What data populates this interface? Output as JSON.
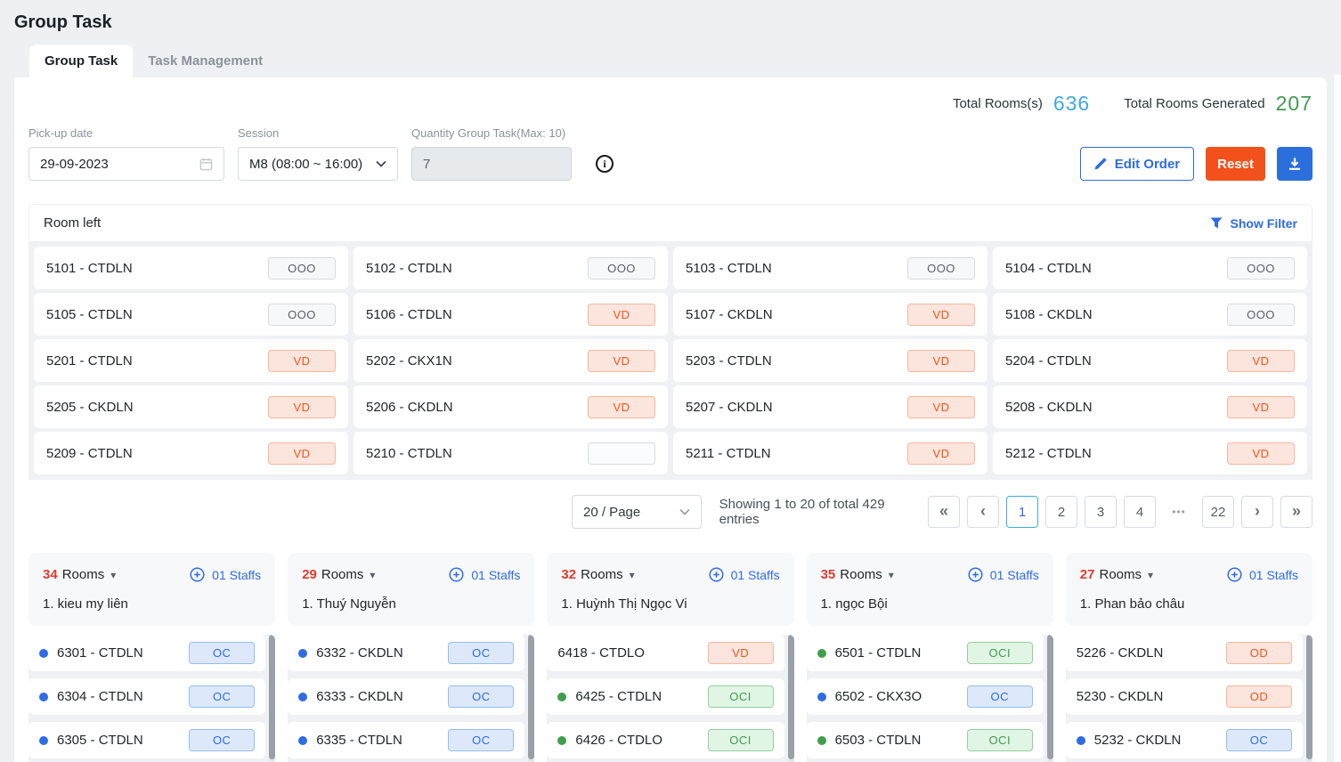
{
  "page": {
    "title": "Group Task"
  },
  "tabs": [
    {
      "label": "Group Task",
      "active": true
    },
    {
      "label": "Task Management",
      "active": false
    }
  ],
  "totals": {
    "rooms_label": "Total Rooms(s)",
    "rooms_value": "636",
    "generated_label": "Total Rooms Generated",
    "generated_value": "207"
  },
  "filters": {
    "pickup_date": {
      "label": "Pick-up date",
      "value": "29-09-2023"
    },
    "session": {
      "label": "Session",
      "value": "M8 (08:00 ~ 16:00)"
    },
    "quantity": {
      "label": "Quantity Group Task(Max: 10)",
      "value": "7",
      "disabled": true
    }
  },
  "actions": {
    "edit_order": "Edit Order",
    "reset": "Reset"
  },
  "room_left": {
    "title": "Room left",
    "show_filter": "Show Filter",
    "rooms": [
      {
        "name": "5101 - CTDLN",
        "status": "OOO"
      },
      {
        "name": "5102 - CTDLN",
        "status": "OOO"
      },
      {
        "name": "5103 - CTDLN",
        "status": "OOO"
      },
      {
        "name": "5104 - CTDLN",
        "status": "OOO"
      },
      {
        "name": "5105 - CTDLN",
        "status": "OOO"
      },
      {
        "name": "5106 - CTDLN",
        "status": "VD"
      },
      {
        "name": "5107 - CKDLN",
        "status": "VD"
      },
      {
        "name": "5108 - CKDLN",
        "status": "OOO"
      },
      {
        "name": "5201 - CTDLN",
        "status": "VD"
      },
      {
        "name": "5202 - CKX1N",
        "status": "VD"
      },
      {
        "name": "5203 - CTDLN",
        "status": "VD"
      },
      {
        "name": "5204 - CTDLN",
        "status": "VD"
      },
      {
        "name": "5205 - CKDLN",
        "status": "VD"
      },
      {
        "name": "5206 - CKDLN",
        "status": "VD"
      },
      {
        "name": "5207 - CKDLN",
        "status": "VD"
      },
      {
        "name": "5208 - CKDLN",
        "status": "VD"
      },
      {
        "name": "5209 - CTDLN",
        "status": "VD"
      },
      {
        "name": "5210 - CTDLN",
        "status": ""
      },
      {
        "name": "5211 - CTDLN",
        "status": "VD"
      },
      {
        "name": "5212 - CTDLN",
        "status": "VD"
      }
    ]
  },
  "pagination": {
    "page_size": "20 / Page",
    "summary": "Showing 1 to 20 of total 429 entries",
    "items": [
      {
        "label": "«",
        "type": "arrow"
      },
      {
        "label": "‹",
        "type": "arrow"
      },
      {
        "label": "1",
        "type": "page",
        "active": true
      },
      {
        "label": "2",
        "type": "page"
      },
      {
        "label": "3",
        "type": "page"
      },
      {
        "label": "4",
        "type": "page"
      },
      {
        "label": "•••",
        "type": "ellipsis"
      },
      {
        "label": "22",
        "type": "page"
      },
      {
        "label": "›",
        "type": "arrow"
      },
      {
        "label": "»",
        "type": "arrow"
      }
    ]
  },
  "groups": [
    {
      "count": "34",
      "rooms_word": "Rooms",
      "staffs_label": "01 Staffs",
      "staff_name": "1. kieu my liên",
      "rooms": [
        {
          "name": "6301 - CTDLN",
          "status": "OC",
          "dot": "blue"
        },
        {
          "name": "6304 - CTDLN",
          "status": "OC",
          "dot": "blue"
        },
        {
          "name": "6305 - CTDLN",
          "status": "OC",
          "dot": "blue"
        }
      ]
    },
    {
      "count": "29",
      "rooms_word": "Rooms",
      "staffs_label": "01 Staffs",
      "staff_name": "1. Thuý Nguyễn",
      "rooms": [
        {
          "name": "6332 - CKDLN",
          "status": "OC",
          "dot": "blue"
        },
        {
          "name": "6333 - CKDLN",
          "status": "OC",
          "dot": "blue"
        },
        {
          "name": "6335 - CTDLN",
          "status": "OC",
          "dot": "blue"
        }
      ]
    },
    {
      "count": "32",
      "rooms_word": "Rooms",
      "staffs_label": "01 Staffs",
      "staff_name": "1. Huỳnh Thị Ngọc Vi",
      "rooms": [
        {
          "name": "6418 - CTDLO",
          "status": "VD",
          "dot": null
        },
        {
          "name": "6425 - CTDLN",
          "status": "OCI",
          "dot": "green"
        },
        {
          "name": "6426 - CTDLO",
          "status": "OCI",
          "dot": "green"
        }
      ]
    },
    {
      "count": "35",
      "rooms_word": "Rooms",
      "staffs_label": "01 Staffs",
      "staff_name": "1. ngọc Bội",
      "rooms": [
        {
          "name": "6501 - CTDLN",
          "status": "OCI",
          "dot": "green"
        },
        {
          "name": "6502 - CKX3O",
          "status": "OC",
          "dot": "blue"
        },
        {
          "name": "6503 - CTDLN",
          "status": "OCI",
          "dot": "green"
        }
      ]
    },
    {
      "count": "27",
      "rooms_word": "Rooms",
      "staffs_label": "01 Staffs",
      "staff_name": "1. Phan bảo châu",
      "rooms": [
        {
          "name": "5226 - CKDLN",
          "status": "OD",
          "dot": null
        },
        {
          "name": "5230 - CKDLN",
          "status": "OD",
          "dot": null
        },
        {
          "name": "5232 - CKDLN",
          "status": "OC",
          "dot": "blue"
        }
      ]
    }
  ],
  "glyphs": {
    "caret_down": "▾"
  },
  "icons": {
    "pickup_date": "calendar-icon",
    "session": "chevron-down-icon",
    "quantity_info": "info-circle-icon",
    "edit_order": "pencil-icon",
    "export": "download-icon",
    "filter": "funnel-icon",
    "rooms_dropdown": "caret-down-icon",
    "add_staff": "plus-circle-icon"
  },
  "colors": {
    "accent_blue": "#2e6be5",
    "total_rooms_blue": "#41a9e0",
    "total_generated_green": "#3f9e4d",
    "reset_orange": "#f2511b",
    "count_red": "#e23b30",
    "badge_orange_text": "#f0551e",
    "badge_green_text": "#3c9d4e",
    "badge_blue_text": "#2e6be5",
    "badge_gray_text": "#596069"
  }
}
